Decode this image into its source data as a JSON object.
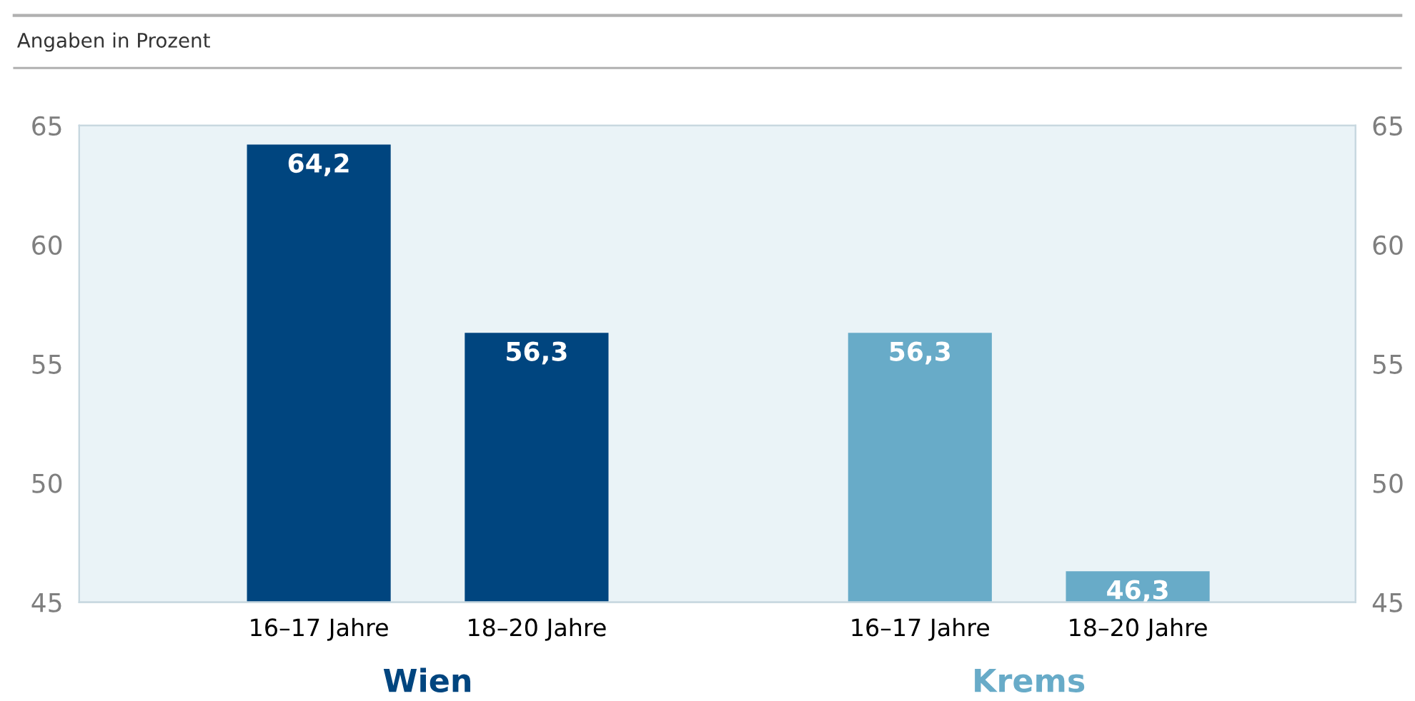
{
  "chart_data": {
    "type": "bar",
    "subtitle": "Angaben in Prozent",
    "categories": [
      "16–17 Jahre",
      "18–20 Jahre",
      "16–17 Jahre",
      "18–20 Jahre"
    ],
    "series": [
      {
        "name": "Wien",
        "color": "#00457f",
        "values": [
          64.2,
          56.3,
          null,
          null
        ]
      },
      {
        "name": "Krems",
        "color": "#68abc8",
        "values": [
          null,
          null,
          56.3,
          46.3
        ]
      }
    ],
    "value_labels": [
      "64,2",
      "56,3",
      "56,3",
      "46,3"
    ],
    "ylim": [
      45,
      65
    ],
    "yticks": [
      45,
      50,
      55,
      60,
      65
    ],
    "y2lim": [
      45,
      65
    ],
    "y2ticks": [
      45,
      50,
      55,
      60,
      65
    ],
    "grid": false,
    "legend": false
  }
}
